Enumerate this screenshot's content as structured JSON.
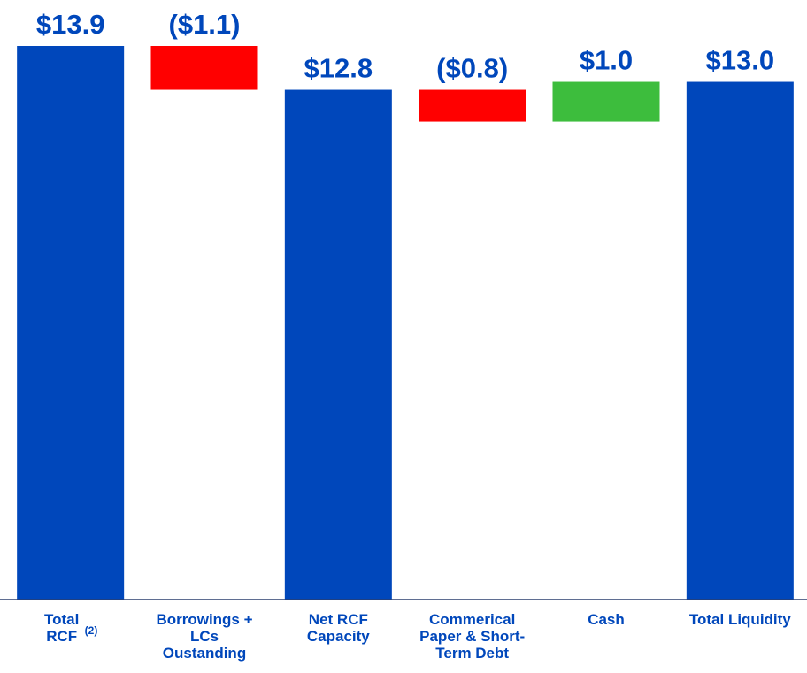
{
  "chart_data": {
    "type": "waterfall",
    "categories": [
      "Total\nRCF",
      "Borrowings +\nLCs\nOustanding",
      "Net RCF\nCapacity",
      "Commerical\nPaper & Short-\nTerm Debt",
      "Cash",
      "Total Liquidity"
    ],
    "category_notes": [
      "(2)",
      null,
      null,
      null,
      null,
      null
    ],
    "measure": [
      "total",
      "relative",
      "total",
      "relative",
      "relative",
      "total"
    ],
    "values": [
      13.9,
      -1.1,
      12.8,
      -0.8,
      1.0,
      13.0
    ],
    "value_labels": [
      "$13.9",
      "($1.1)",
      "$12.8",
      "($0.8)",
      "$1.0",
      "$13.0"
    ],
    "colors": {
      "total": "#0047bb",
      "increase": "#3dbd3d",
      "decrease": "#ff0000"
    },
    "ylim": [
      0,
      13.9
    ]
  }
}
